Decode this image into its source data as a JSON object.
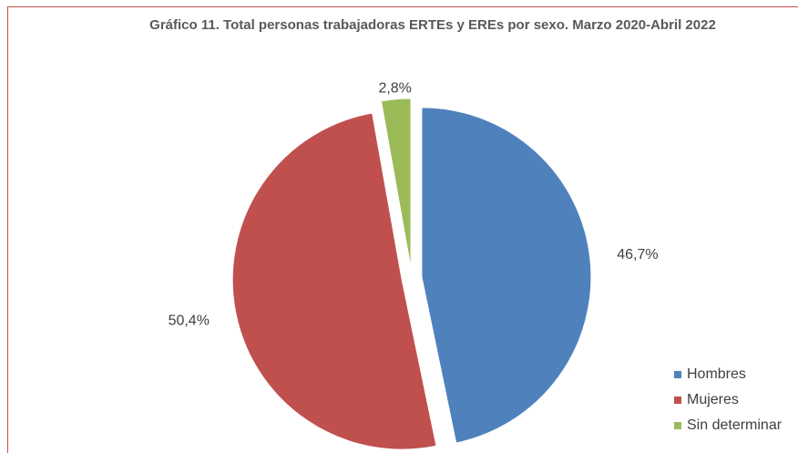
{
  "chart_data": {
    "type": "pie",
    "title": "Gráfico 11. Total personas trabajadoras ERTEs y EREs por sexo. Marzo 2020-Abril 2022",
    "categories": [
      "Hombres",
      "Mujeres",
      "Sin determinar"
    ],
    "values": [
      46.7,
      50.4,
      2.8
    ],
    "value_labels": [
      "46,7%",
      "50,4%",
      "2,8%"
    ],
    "colors": [
      "#4f81bd",
      "#c0504d",
      "#9bbb59"
    ],
    "legend": "bottom-right"
  }
}
